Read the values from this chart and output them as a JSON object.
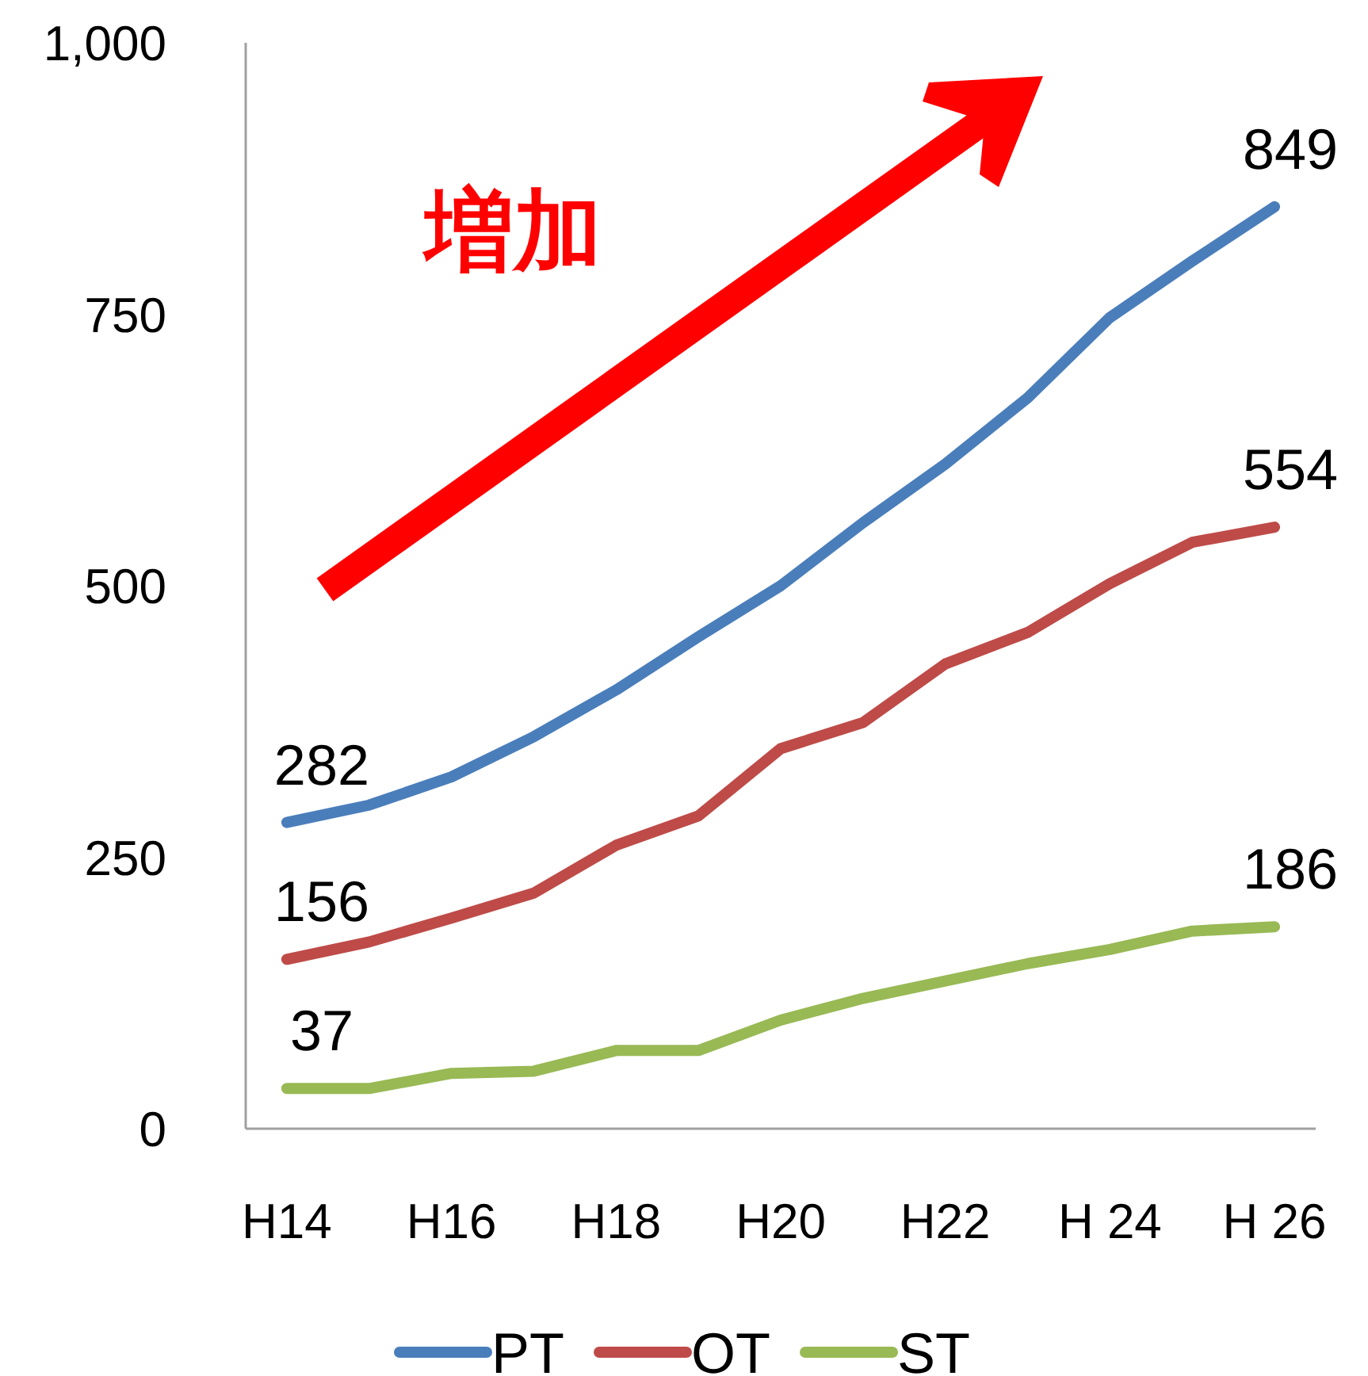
{
  "chart_data": {
    "type": "line",
    "categories": [
      "H14",
      null,
      "H16",
      null,
      "H18",
      null,
      "H20",
      null,
      "H22",
      null,
      "H 24",
      null,
      "H 26"
    ],
    "series": [
      {
        "name": "PT",
        "color": "#4a7ebb",
        "values": [
          282,
          298,
          324,
          361,
          404,
          453,
          500,
          558,
          612,
          673,
          747,
          799,
          849
        ],
        "value_labels": [
          "282",
          null,
          null,
          null,
          null,
          null,
          null,
          null,
          null,
          null,
          null,
          null,
          "849"
        ]
      },
      {
        "name": "OT",
        "color": "#be4b48",
        "values": [
          156,
          172,
          194,
          217,
          261,
          288,
          350,
          374,
          428,
          457,
          502,
          540,
          554
        ],
        "value_labels": [
          "156",
          null,
          null,
          null,
          null,
          null,
          null,
          null,
          null,
          null,
          null,
          null,
          "554"
        ]
      },
      {
        "name": "ST",
        "color": "#98b954",
        "values": [
          37,
          37,
          51,
          53,
          72,
          72,
          100,
          120,
          136,
          152,
          165,
          182,
          186
        ],
        "value_labels": [
          "37",
          null,
          null,
          null,
          null,
          null,
          null,
          null,
          null,
          null,
          null,
          null,
          "186"
        ]
      }
    ],
    "ylim": [
      0,
      1000
    ],
    "yticks": [
      0,
      250,
      500,
      750,
      {
        "value": 1000,
        "label": "1,000"
      }
    ],
    "annotations": [
      "増加"
    ],
    "legend": "bottom",
    "grid": false,
    "marker": "none",
    "line_style": "solid"
  }
}
